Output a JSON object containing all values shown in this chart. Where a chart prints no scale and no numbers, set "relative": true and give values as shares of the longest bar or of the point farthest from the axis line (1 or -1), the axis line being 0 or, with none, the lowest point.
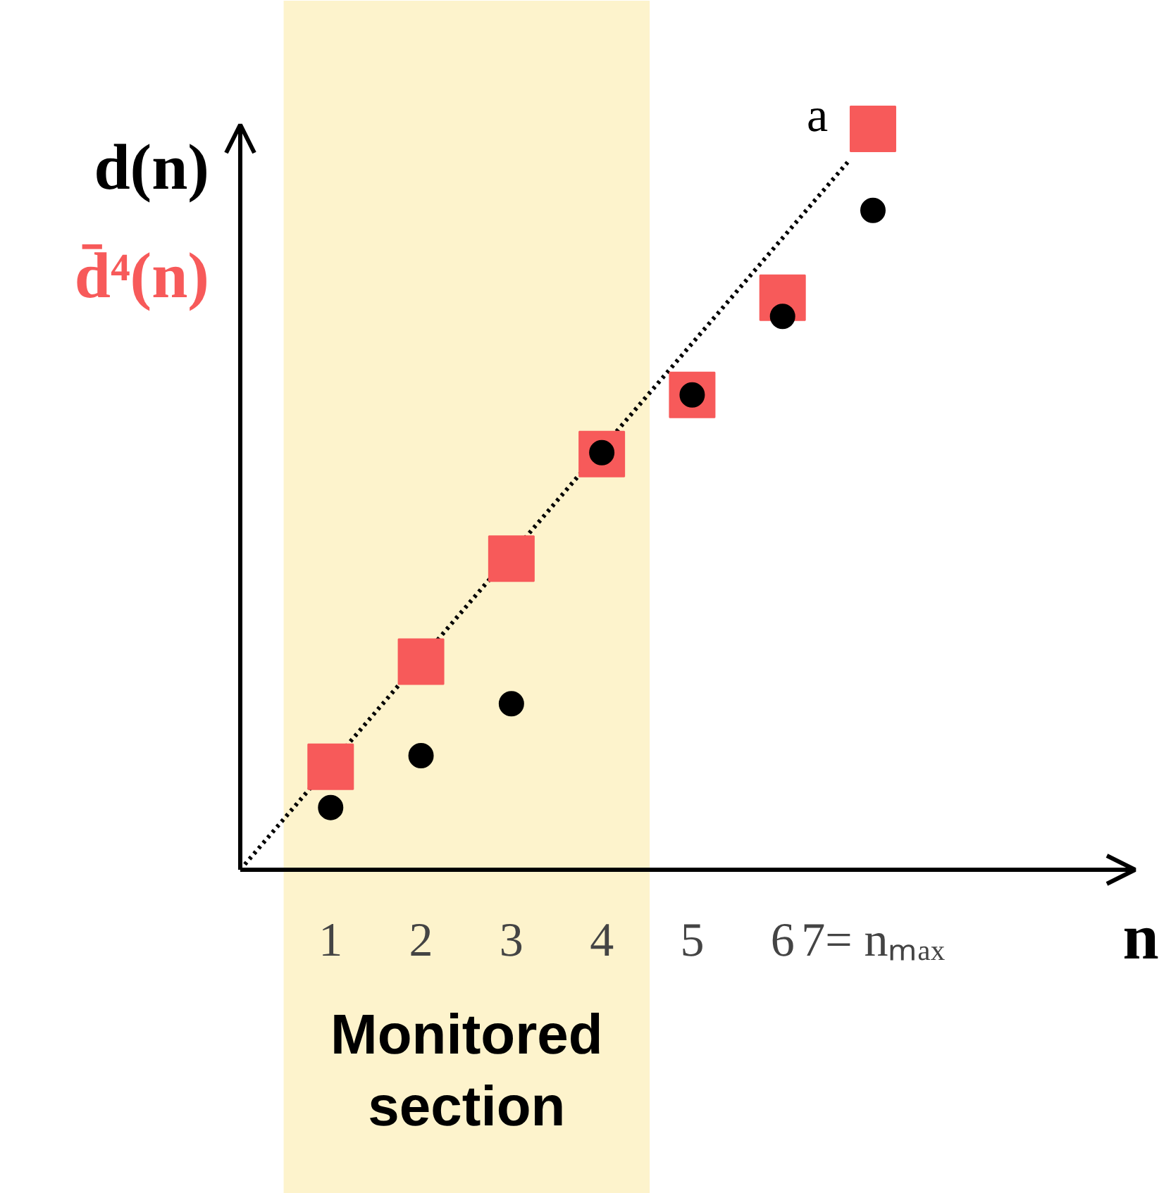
{
  "chart_data": {
    "type": "scatter",
    "relative": true,
    "xlabel": "n",
    "x": [
      1,
      2,
      3,
      4,
      5,
      6,
      7
    ],
    "xlim": [
      0,
      9.9
    ],
    "xticks": [
      1,
      2,
      3,
      4,
      5,
      6,
      {
        "value": 7,
        "label": "7= nₘₐₓ"
      }
    ],
    "legend": "top left",
    "series": [
      {
        "name": "d(n)",
        "color": "#000000",
        "marker": "circle",
        "values": [
          0.084,
          0.154,
          0.224,
          0.563,
          0.641,
          0.747,
          0.89
        ]
      },
      {
        "name": "d̄⁴(n)",
        "color": "#f75a5a",
        "marker": "square",
        "values": [
          0.139,
          0.281,
          0.42,
          0.561,
          0.641,
          0.772,
          1.0
        ]
      },
      {
        "type": "line",
        "name": "a",
        "color": "#000000",
        "line_style": "dotted",
        "x": [
          0,
          6.72
        ],
        "values": [
          0,
          0.955
        ]
      }
    ],
    "bands": [
      {
        "axis": "x",
        "from": 0.48,
        "to": 4.53,
        "label": "Monitored section",
        "color": "#fdf3cc"
      }
    ]
  }
}
